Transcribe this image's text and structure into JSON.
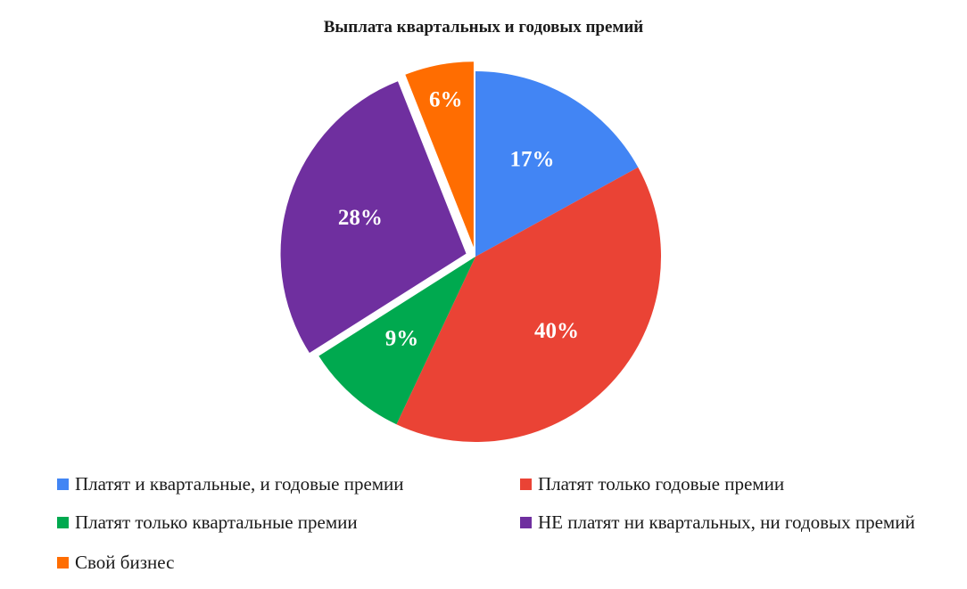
{
  "chart_data": {
    "type": "pie",
    "title": "Выплата квартальных и годовых премий",
    "categories": [
      "Платят и квартальные, и годовые премии",
      "Платят только годовые премии",
      "Платят только квартальные премии",
      "НЕ платят ни квартальных, ни годовых премий",
      "Свой бизнес"
    ],
    "values": [
      17,
      40,
      9,
      28,
      6
    ],
    "labels": [
      "17%",
      "40%",
      "9%",
      "28%",
      "6%"
    ],
    "colors": [
      "#4285f4",
      "#ea4335",
      "#00a94f",
      "#6f2f9f",
      "#ff6d01"
    ],
    "exploded": [
      false,
      false,
      false,
      true,
      true
    ],
    "start_angle": "12 o'clock, clockwise",
    "legend_position": "bottom"
  },
  "legend": [
    {
      "label": "Платят и квартальные, и годовые премии",
      "color": "#4285f4"
    },
    {
      "label": "Платят только годовые премии",
      "color": "#ea4335"
    },
    {
      "label": "Платят только квартальные премии",
      "color": "#00a94f"
    },
    {
      "label": "НЕ платят ни квартальных, ни годовых премий",
      "color": "#6f2f9f"
    },
    {
      "label": "Свой бизнес",
      "color": "#ff6d01"
    }
  ]
}
